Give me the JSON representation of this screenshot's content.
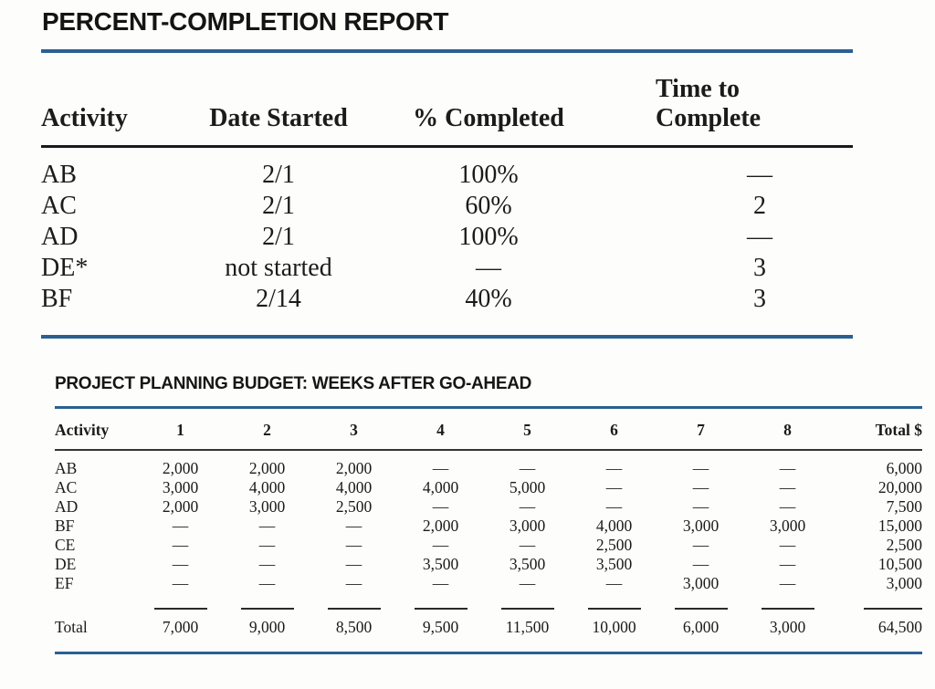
{
  "completion_report": {
    "title": "PERCENT-COMPLETION REPORT",
    "columns": {
      "activity": "Activity",
      "date_started": "Date Started",
      "pct_completed": "% Completed",
      "time_to_complete": "Time to\nComplete"
    },
    "rows": [
      {
        "activity": "AB",
        "date_started": "2/1",
        "pct_completed": "100%",
        "time_to_complete": "—"
      },
      {
        "activity": "AC",
        "date_started": "2/1",
        "pct_completed": "60%",
        "time_to_complete": "2"
      },
      {
        "activity": "AD",
        "date_started": "2/1",
        "pct_completed": "100%",
        "time_to_complete": "—"
      },
      {
        "activity": "DE*",
        "date_started": "not started",
        "pct_completed": "—",
        "time_to_complete": "3"
      },
      {
        "activity": "BF",
        "date_started": "2/14",
        "pct_completed": "40%",
        "time_to_complete": "3"
      }
    ]
  },
  "budget": {
    "title": "PROJECT PLANNING BUDGET: WEEKS AFTER GO-AHEAD",
    "columns": [
      "Activity",
      "1",
      "2",
      "3",
      "4",
      "5",
      "6",
      "7",
      "8",
      "Total $"
    ],
    "rows": [
      {
        "activity": "AB",
        "weeks": [
          "2,000",
          "2,000",
          "2,000",
          "—",
          "—",
          "—",
          "—",
          "—"
        ],
        "total": "6,000"
      },
      {
        "activity": "AC",
        "weeks": [
          "3,000",
          "4,000",
          "4,000",
          "4,000",
          "5,000",
          "—",
          "—",
          "—"
        ],
        "total": "20,000"
      },
      {
        "activity": "AD",
        "weeks": [
          "2,000",
          "3,000",
          "2,500",
          "—",
          "—",
          "—",
          "—",
          "—"
        ],
        "total": "7,500"
      },
      {
        "activity": "BF",
        "weeks": [
          "—",
          "—",
          "—",
          "2,000",
          "3,000",
          "4,000",
          "3,000",
          "3,000"
        ],
        "total": "15,000"
      },
      {
        "activity": "CE",
        "weeks": [
          "—",
          "—",
          "—",
          "—",
          "—",
          "2,500",
          "—",
          "—"
        ],
        "total": "2,500"
      },
      {
        "activity": "DE",
        "weeks": [
          "—",
          "—",
          "—",
          "3,500",
          "3,500",
          "3,500",
          "—",
          "—"
        ],
        "total": "10,500"
      },
      {
        "activity": "EF",
        "weeks": [
          "—",
          "—",
          "—",
          "—",
          "—",
          "—",
          "3,000",
          "—"
        ],
        "total": "3,000"
      }
    ],
    "total_row": {
      "label": "Total",
      "weeks": [
        "7,000",
        "9,000",
        "8,500",
        "9,500",
        "11,500",
        "10,000",
        "6,000",
        "3,000"
      ],
      "total": "64,500"
    }
  },
  "colors": {
    "rule_blue": "#2a6094",
    "rule_black": "#191919",
    "text": "#1b1b1b",
    "background": "#fdfdfb"
  }
}
